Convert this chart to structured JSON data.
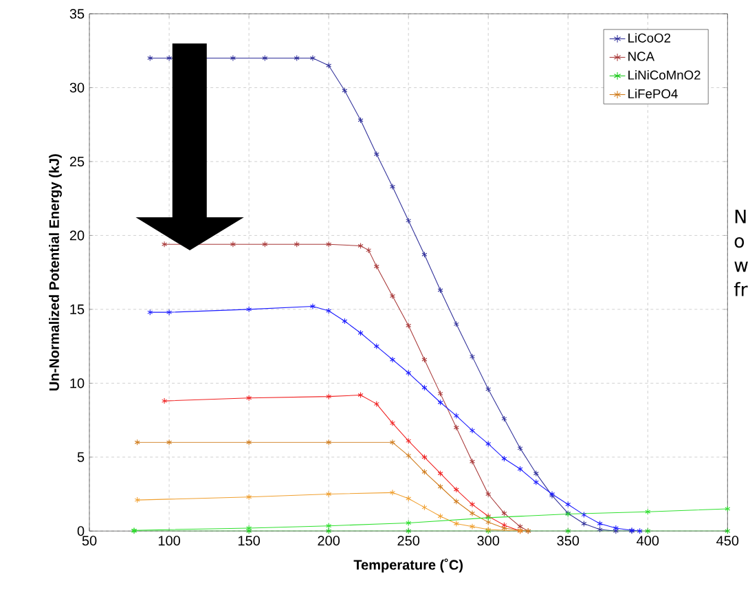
{
  "chart_data": {
    "type": "line",
    "xlabel": "Temperature (˚C)",
    "ylabel": "Un-Normalized Potential Energy (kJ)",
    "xlim": [
      50,
      450
    ],
    "ylim": [
      0,
      35
    ],
    "xticks": [
      50,
      100,
      150,
      200,
      250,
      300,
      350,
      400,
      450
    ],
    "yticks": [
      0,
      5,
      10,
      15,
      20,
      25,
      30,
      35
    ],
    "grid": true,
    "legend": "top right",
    "marker": "cross",
    "line_style": "solid",
    "series": [
      {
        "name": "LiCoO2",
        "color": "#30309a",
        "x": [
          88,
          100,
          140,
          160,
          180,
          190,
          200,
          210,
          220,
          230,
          240,
          250,
          260,
          270,
          280,
          290,
          300,
          310,
          320,
          330,
          340,
          350,
          360,
          370,
          380,
          390
        ],
        "values": [
          32,
          32,
          32,
          32,
          32,
          32,
          31.5,
          29.8,
          27.8,
          25.5,
          23.3,
          21,
          18.7,
          16.3,
          14,
          11.8,
          9.6,
          7.6,
          5.6,
          3.9,
          2.4,
          1.2,
          0.5,
          0.1,
          0,
          0
        ]
      },
      {
        "name": "NCA",
        "color": "#a83838",
        "x": [
          97,
          140,
          160,
          180,
          200,
          220,
          225,
          230,
          240,
          250,
          260,
          270,
          280,
          290,
          300,
          310,
          320,
          325
        ],
        "values": [
          19.4,
          19.4,
          19.4,
          19.4,
          19.4,
          19.3,
          19.0,
          17.9,
          15.9,
          13.9,
          11.6,
          9.3,
          7.0,
          4.7,
          2.5,
          1.2,
          0.3,
          0
        ]
      },
      {
        "name": "LiNiCoMnO2",
        "color": "#18c818",
        "x": [
          78,
          150,
          200,
          250,
          300,
          350,
          400,
          450
        ],
        "values": [
          0,
          0,
          0,
          0,
          0,
          0,
          0,
          0
        ]
      },
      {
        "name": "LiFePO4",
        "color": "#d07c1c",
        "x": [
          80,
          100,
          150,
          200,
          240,
          250,
          260,
          270,
          280,
          290,
          300,
          310,
          320,
          325
        ],
        "values": [
          6,
          6,
          6,
          6,
          6,
          5.1,
          4.0,
          3.0,
          2.0,
          1.2,
          0.6,
          0.2,
          0.05,
          0
        ]
      },
      {
        "color": "#1a1aff",
        "x": [
          88,
          100,
          150,
          190,
          200,
          210,
          220,
          230,
          240,
          250,
          260,
          270,
          280,
          290,
          300,
          310,
          320,
          330,
          340,
          350,
          360,
          370,
          380,
          390,
          395
        ],
        "values": [
          14.8,
          14.8,
          15,
          15.2,
          14.9,
          14.2,
          13.4,
          12.5,
          11.6,
          10.7,
          9.7,
          8.7,
          7.8,
          6.8,
          5.9,
          4.9,
          4.2,
          3.3,
          2.5,
          1.8,
          1.1,
          0.5,
          0.2,
          0.05,
          0
        ]
      },
      {
        "color": "#f02020",
        "x": [
          97,
          150,
          200,
          220,
          230,
          240,
          250,
          260,
          270,
          280,
          290,
          300,
          310,
          320
        ],
        "values": [
          8.8,
          9.0,
          9.1,
          9.2,
          8.6,
          7.3,
          6.1,
          5.0,
          3.9,
          2.8,
          1.8,
          1.0,
          0.4,
          0
        ]
      },
      {
        "color": "#f0a030",
        "x": [
          80,
          150,
          200,
          240,
          250,
          260,
          270,
          280,
          290,
          300,
          320
        ],
        "values": [
          2.1,
          2.3,
          2.5,
          2.6,
          2.2,
          1.6,
          1.0,
          0.5,
          0.3,
          0.1,
          0
        ]
      },
      {
        "color": "#30e030",
        "x": [
          78,
          150,
          200,
          250,
          300,
          350,
          400,
          450
        ],
        "values": [
          0.05,
          0.2,
          0.35,
          0.55,
          0.9,
          1.15,
          1.3,
          1.5
        ]
      }
    ],
    "annotations": [
      "N",
      "o",
      "w",
      "fr"
    ]
  }
}
